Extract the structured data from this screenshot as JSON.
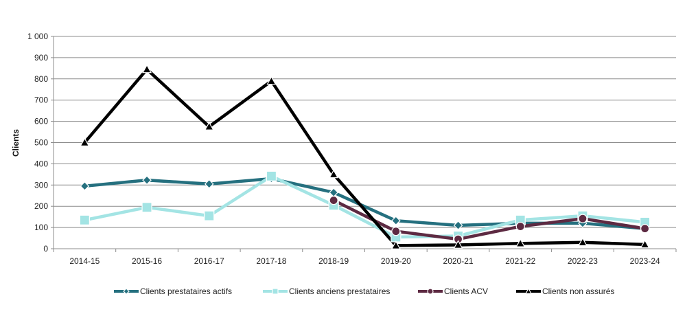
{
  "chart_data": {
    "type": "line",
    "title": "",
    "xlabel": "",
    "ylabel": "Clients",
    "ylim": [
      0,
      1000
    ],
    "yticks": [
      0,
      100,
      200,
      300,
      400,
      500,
      600,
      700,
      800,
      900,
      1000
    ],
    "ytick_labels": [
      "0",
      "100",
      "200",
      "300",
      "400",
      "500",
      "600",
      "700",
      "800",
      "900",
      "1 000"
    ],
    "grid": true,
    "legend_position": "bottom",
    "categories": [
      "2014-15",
      "2015-16",
      "2016-17",
      "2017-18",
      "2018-19",
      "2019-20",
      "2020-21",
      "2021-22",
      "2022-23",
      "2023-24"
    ],
    "series": [
      {
        "name": "Clients prestataires actifs",
        "color": "#25707f",
        "marker": "diamond",
        "values": [
          295,
          323,
          305,
          330,
          265,
          132,
          110,
          120,
          120,
          95
        ]
      },
      {
        "name": "Clients anciens prestataires",
        "color": "#a3e4e4",
        "marker": "square",
        "values": [
          135,
          195,
          155,
          342,
          205,
          55,
          60,
          135,
          155,
          125
        ]
      },
      {
        "name": "Clients ACV",
        "color": "#5d2a42",
        "marker": "circle",
        "values": [
          null,
          null,
          null,
          null,
          228,
          82,
          45,
          105,
          142,
          95
        ]
      },
      {
        "name": "Clients non assurés",
        "color": "#000000",
        "marker": "triangle",
        "values": [
          500,
          845,
          575,
          790,
          350,
          15,
          18,
          25,
          30,
          20
        ]
      }
    ]
  }
}
